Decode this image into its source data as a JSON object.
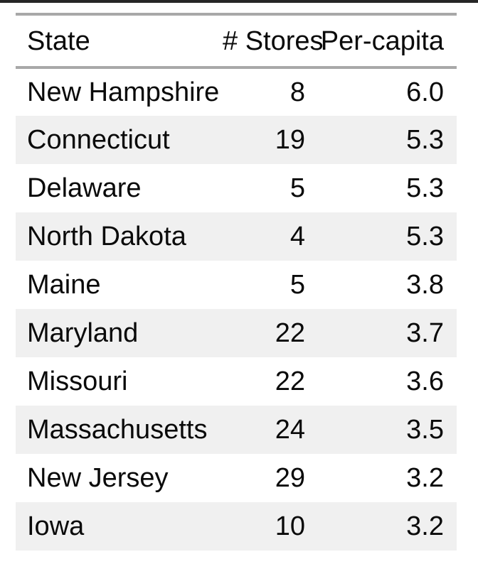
{
  "colors": {
    "top_bar_color": "#262626",
    "rule_color": "#a8a8a8",
    "zebra_color": "#f0f0f0",
    "text_color": "#0a0a0a"
  },
  "chart_data": {
    "type": "table",
    "title": "",
    "columns": [
      "State",
      "# Stores",
      "Per-capita"
    ],
    "rows": [
      {
        "state": "New Hampshire",
        "stores": "8",
        "per_capita": "6.0"
      },
      {
        "state": "Connecticut",
        "stores": "19",
        "per_capita": "5.3"
      },
      {
        "state": "Delaware",
        "stores": "5",
        "per_capita": "5.3"
      },
      {
        "state": "North Dakota",
        "stores": "4",
        "per_capita": "5.3"
      },
      {
        "state": "Maine",
        "stores": "5",
        "per_capita": "3.8"
      },
      {
        "state": "Maryland",
        "stores": "22",
        "per_capita": "3.7"
      },
      {
        "state": "Missouri",
        "stores": "22",
        "per_capita": "3.6"
      },
      {
        "state": "Massachusetts",
        "stores": "24",
        "per_capita": "3.5"
      },
      {
        "state": "New Jersey",
        "stores": "29",
        "per_capita": "3.2"
      },
      {
        "state": "Iowa",
        "stores": "10",
        "per_capita": "3.2"
      }
    ],
    "numeric": {
      "stores": [
        8,
        19,
        5,
        4,
        5,
        22,
        22,
        24,
        29,
        10
      ],
      "per_capita": [
        6.0,
        5.3,
        5.3,
        5.3,
        3.8,
        3.7,
        3.6,
        3.5,
        3.2,
        3.2
      ]
    },
    "layout": {
      "zebra_striping": true,
      "stores_align": "right",
      "per_capita_align": "right"
    }
  }
}
